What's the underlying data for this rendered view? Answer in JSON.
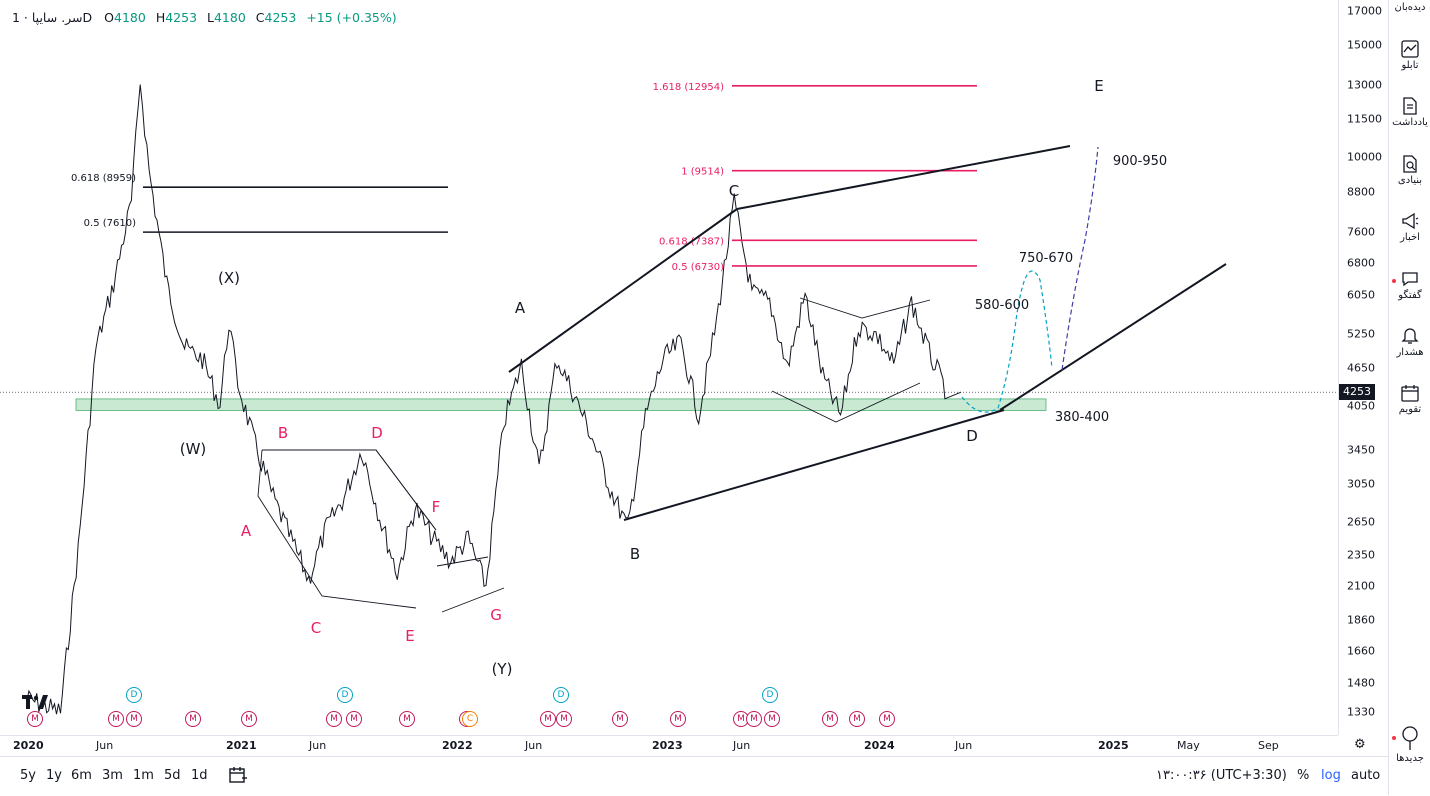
{
  "legend": {
    "symbol": "سر. سایپا · 1D",
    "open_label": "O",
    "open": "4180",
    "high_label": "H",
    "high": "4253",
    "low_label": "L",
    "low": "4180",
    "close_label": "C",
    "close": "4253",
    "change": "+15 (+0.35%)"
  },
  "current_price": "4253",
  "chart_data": {
    "type": "line",
    "title": "سر. سایپا",
    "interval": "1D",
    "log_scale": true,
    "y_ticks": [
      17000,
      15000,
      13000,
      11500,
      10000,
      8800,
      7600,
      6800,
      6050,
      5250,
      4650,
      4050,
      3450,
      3050,
      2650,
      2350,
      2100,
      1860,
      1660,
      1480,
      1330
    ],
    "x_ticks": [
      "2020",
      "Jun",
      "2021",
      "Jun",
      "2022",
      "Jun",
      "2023",
      "Jun",
      "2024",
      "Jun",
      "2025",
      "May",
      "Sep"
    ],
    "series": [
      {
        "values": [
          [
            "2020-01",
            1400
          ],
          [
            "2020-03",
            1330
          ],
          [
            "2020-04",
            2400
          ],
          [
            "2020-05",
            5000
          ],
          [
            "2020-06",
            6300
          ],
          [
            "2020-07",
            8500
          ],
          [
            "2020-07",
            13200
          ],
          [
            "2020-08",
            9500
          ],
          [
            "2020-09",
            6300
          ],
          [
            "2020-10",
            5000
          ],
          [
            "2020-11",
            4800
          ],
          [
            "2020-12",
            4050
          ],
          [
            "2020-12",
            5500
          ],
          [
            "2021-01",
            4400
          ],
          [
            "2021-02",
            3500
          ],
          [
            "2021-03",
            2900
          ],
          [
            "2021-05",
            2150
          ],
          [
            "2021-06",
            2600
          ],
          [
            "2021-07",
            2900
          ],
          [
            "2021-08",
            3450
          ],
          [
            "2021-09",
            2700
          ],
          [
            "2021-10",
            2200
          ],
          [
            "2021-11",
            2800
          ],
          [
            "2021-12",
            2500
          ],
          [
            "2022-01",
            2300
          ],
          [
            "2022-02",
            2500
          ],
          [
            "2022-03",
            2100
          ],
          [
            "2022-04",
            3800
          ],
          [
            "2022-05",
            4700
          ],
          [
            "2022-06",
            3200
          ],
          [
            "2022-07",
            4800
          ],
          [
            "2022-08",
            4200
          ],
          [
            "2022-09",
            3600
          ],
          [
            "2022-10",
            3000
          ],
          [
            "2022-11",
            2600
          ],
          [
            "2022-12",
            3900
          ],
          [
            "2023-01",
            4800
          ],
          [
            "2023-02",
            5100
          ],
          [
            "2023-03",
            3900
          ],
          [
            "2023-04",
            5500
          ],
          [
            "2023-05",
            8500
          ],
          [
            "2023-06",
            6100
          ],
          [
            "2023-07",
            5900
          ],
          [
            "2023-08",
            4650
          ],
          [
            "2023-09",
            6050
          ],
          [
            "2023-10",
            4500
          ],
          [
            "2023-11",
            3900
          ],
          [
            "2023-12",
            5400
          ],
          [
            "2024-01",
            5250
          ],
          [
            "2024-02",
            4700
          ],
          [
            "2024-03",
            5900
          ],
          [
            "2024-04",
            4900
          ],
          [
            "2024-05",
            4253
          ]
        ]
      }
    ],
    "support_zone": {
      "from": 3980,
      "to": 4150,
      "color": "#b2dfc0"
    }
  },
  "fibs": {
    "left": [
      {
        "label": "0.618 (8959)",
        "price": 8959
      },
      {
        "label": "0.5 (7610)",
        "price": 7610
      }
    ],
    "right": [
      {
        "label": "1.618 (12954)",
        "price": 12954
      },
      {
        "label": "1 (9514)",
        "price": 9514
      },
      {
        "label": "0.618 (7387)",
        "price": 7387
      },
      {
        "label": "0.5 (6730)",
        "price": 6730
      }
    ]
  },
  "wave_labels": {
    "black": [
      "(X)",
      "(W)",
      "(Y)",
      "A",
      "B",
      "C",
      "D",
      "E"
    ],
    "pink": [
      "A",
      "B",
      "C",
      "D",
      "E",
      "F",
      "G"
    ]
  },
  "targets": {
    "t1": "580-600",
    "t2": "750-670",
    "t3": "900-950",
    "support": "380-400"
  },
  "events": {
    "m": "M",
    "d": "D",
    "c": "C"
  },
  "timeframes": [
    "5y",
    "1y",
    "6m",
    "3m",
    "1m",
    "5d",
    "1d"
  ],
  "bottom_right": {
    "time": "۱۳:۰۰:۳۶ (UTC+3:30)",
    "percent": "%",
    "log": "log",
    "auto": "auto"
  },
  "right_panel": [
    {
      "label": "دیده‌بان",
      "icon": "watchlist-icon"
    },
    {
      "label": "تابلو",
      "icon": "chart-board-icon"
    },
    {
      "label": "یادداشت",
      "icon": "note-icon"
    },
    {
      "label": "بنیادی",
      "icon": "fundamental-icon"
    },
    {
      "label": "اخبار",
      "icon": "news-icon"
    },
    {
      "label": "گفتگو",
      "icon": "chat-icon"
    },
    {
      "label": "هشدار",
      "icon": "alert-icon"
    },
    {
      "label": "تقویم",
      "icon": "calendar-icon"
    },
    {
      "label": "جدیدها",
      "icon": "whats-new-icon"
    }
  ]
}
